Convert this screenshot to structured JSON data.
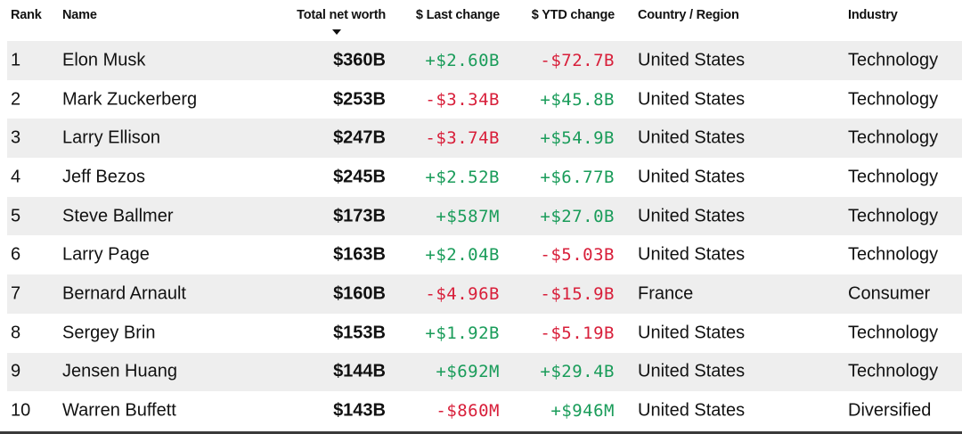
{
  "header": {
    "rank": "Rank",
    "name": "Name",
    "net_worth": "Total net worth",
    "last_change": "$ Last change",
    "ytd_change": "$ YTD change",
    "country": "Country / Region",
    "industry": "Industry"
  },
  "colors": {
    "positive": "#1a9c5a",
    "negative": "#d81f3a",
    "row_shade": "#eeeeee"
  },
  "rows": [
    {
      "rank": "1",
      "name": "Elon Musk",
      "net_worth": "$360B",
      "last_change": "+$2.60B",
      "ytd_change": "-$72.7B",
      "country": "United States",
      "industry": "Technology"
    },
    {
      "rank": "2",
      "name": "Mark Zuckerberg",
      "net_worth": "$253B",
      "last_change": "-$3.34B",
      "ytd_change": "+$45.8B",
      "country": "United States",
      "industry": "Technology"
    },
    {
      "rank": "3",
      "name": "Larry Ellison",
      "net_worth": "$247B",
      "last_change": "-$3.74B",
      "ytd_change": "+$54.9B",
      "country": "United States",
      "industry": "Technology"
    },
    {
      "rank": "4",
      "name": "Jeff Bezos",
      "net_worth": "$245B",
      "last_change": "+$2.52B",
      "ytd_change": "+$6.77B",
      "country": "United States",
      "industry": "Technology"
    },
    {
      "rank": "5",
      "name": "Steve Ballmer",
      "net_worth": "$173B",
      "last_change": "+$587M",
      "ytd_change": "+$27.0B",
      "country": "United States",
      "industry": "Technology"
    },
    {
      "rank": "6",
      "name": "Larry Page",
      "net_worth": "$163B",
      "last_change": "+$2.04B",
      "ytd_change": "-$5.03B",
      "country": "United States",
      "industry": "Technology"
    },
    {
      "rank": "7",
      "name": "Bernard Arnault",
      "net_worth": "$160B",
      "last_change": "-$4.96B",
      "ytd_change": "-$15.9B",
      "country": "France",
      "industry": "Consumer"
    },
    {
      "rank": "8",
      "name": "Sergey Brin",
      "net_worth": "$153B",
      "last_change": "+$1.92B",
      "ytd_change": "-$5.19B",
      "country": "United States",
      "industry": "Technology"
    },
    {
      "rank": "9",
      "name": "Jensen Huang",
      "net_worth": "$144B",
      "last_change": "+$692M",
      "ytd_change": "+$29.4B",
      "country": "United States",
      "industry": "Technology"
    },
    {
      "rank": "10",
      "name": "Warren Buffett",
      "net_worth": "$143B",
      "last_change": "-$860M",
      "ytd_change": "+$946M",
      "country": "United States",
      "industry": "Diversified"
    }
  ]
}
